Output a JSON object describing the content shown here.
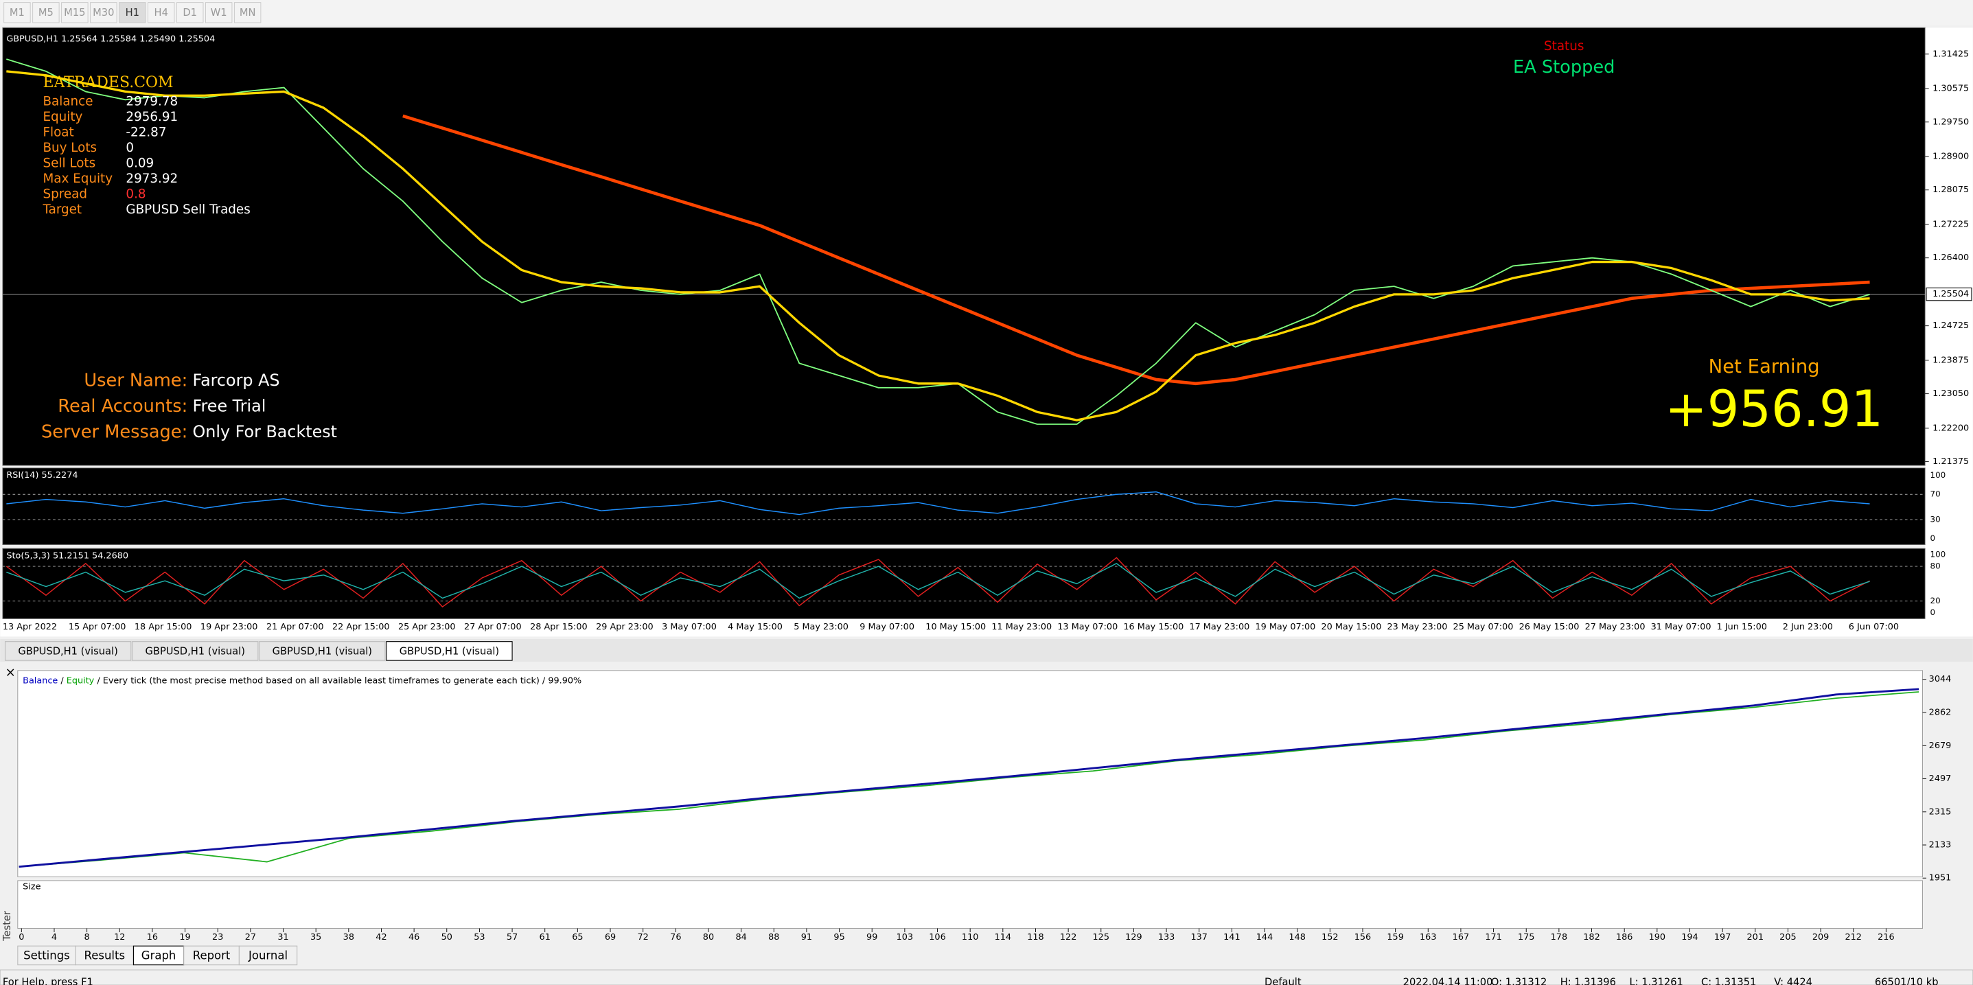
{
  "toolbar": {
    "timeframes": [
      "M1",
      "M5",
      "M15",
      "M30",
      "H1",
      "H4",
      "D1",
      "W1",
      "MN"
    ]
  },
  "chart": {
    "header": "GBPUSD,H1  1.25564 1.25584 1.25490 1.25504",
    "brand": "EATRADES.COM",
    "stats": [
      {
        "label": "Balance",
        "value": "2979.78"
      },
      {
        "label": "Equity",
        "value": "2956.91"
      },
      {
        "label": "Float",
        "value": "-22.87"
      },
      {
        "label": "Buy Lots",
        "value": "0"
      },
      {
        "label": "Sell Lots",
        "value": "0.09"
      },
      {
        "label": "Max Equity",
        "value": "2973.92"
      },
      {
        "label": "Spread",
        "value": "0.8"
      },
      {
        "label": "Target",
        "value": "GBPUSD Sell Trades"
      }
    ],
    "account": [
      {
        "label": "User Name:",
        "value": "Farcorp AS"
      },
      {
        "label": "Real Accounts:",
        "value": "Free Trial"
      },
      {
        "label": "Server Message:",
        "value": "Only For Backtest"
      }
    ],
    "status_label": "Status",
    "status": "EA Stopped",
    "net_label": "Net Earning",
    "net_value": "+956.91",
    "price_ticks": [
      "1.31425",
      "1.30575",
      "1.29750",
      "1.28900",
      "1.28075",
      "1.27225",
      "1.26400",
      "1.24725",
      "1.23875",
      "1.23050",
      "1.22200",
      "1.21375"
    ],
    "current_price": "1.25504",
    "time_labels": [
      "13 Apr 2022",
      "15 Apr 07:00",
      "18 Apr 15:00",
      "19 Apr 23:00",
      "21 Apr 07:00",
      "22 Apr 15:00",
      "25 Apr 23:00",
      "27 Apr 07:00",
      "28 Apr 15:00",
      "29 Apr 23:00",
      "3 May 07:00",
      "4 May 15:00",
      "5 May 23:00",
      "9 May 07:00",
      "10 May 15:00",
      "11 May 23:00",
      "13 May 07:00",
      "16 May 15:00",
      "17 May 23:00",
      "19 May 07:00",
      "20 May 15:00",
      "23 May 23:00",
      "25 May 07:00",
      "26 May 15:00",
      "27 May 23:00",
      "31 May 07:00",
      "1 Jun 15:00",
      "2 Jun 23:00",
      "6 Jun 07:00"
    ],
    "price": [
      1.313,
      1.31,
      1.305,
      1.303,
      1.304,
      1.3035,
      1.305,
      1.306,
      1.296,
      1.286,
      1.278,
      1.268,
      1.259,
      1.253,
      1.256,
      1.258,
      1.256,
      1.255,
      1.256,
      1.26,
      1.238,
      1.235,
      1.232,
      1.232,
      1.233,
      1.226,
      1.223,
      1.223,
      1.23,
      1.238,
      1.248,
      1.242,
      1.246,
      1.25,
      1.256,
      1.257,
      1.254,
      1.257,
      1.262,
      1.263,
      1.264,
      1.263,
      1.26,
      1.256,
      1.252,
      1.256,
      1.252,
      1.255
    ],
    "ma_fast": [
      1.31,
      1.309,
      1.307,
      1.305,
      1.304,
      1.304,
      1.3045,
      1.305,
      1.301,
      1.294,
      1.286,
      1.277,
      1.268,
      1.261,
      1.258,
      1.257,
      1.2565,
      1.2555,
      1.2555,
      1.257,
      1.248,
      1.24,
      1.235,
      1.233,
      1.233,
      1.23,
      1.226,
      1.224,
      1.226,
      1.231,
      1.24,
      1.243,
      1.245,
      1.248,
      1.252,
      1.255,
      1.255,
      1.256,
      1.259,
      1.261,
      1.263,
      1.263,
      1.2615,
      1.2585,
      1.255,
      1.255,
      1.2535,
      1.254
    ],
    "ma_slow": [
      null,
      null,
      null,
      null,
      null,
      null,
      null,
      null,
      null,
      null,
      1.299,
      1.296,
      1.293,
      1.29,
      1.287,
      1.284,
      1.281,
      1.278,
      1.275,
      1.272,
      1.268,
      1.264,
      1.26,
      1.256,
      1.252,
      1.248,
      1.244,
      1.24,
      1.237,
      1.234,
      1.233,
      1.234,
      1.236,
      1.238,
      1.24,
      1.242,
      1.244,
      1.246,
      1.248,
      1.25,
      1.252,
      1.254,
      1.255,
      1.256,
      1.2565,
      1.257,
      1.2575,
      1.258
    ]
  },
  "rsi": {
    "label": "RSI(14) 55.2274",
    "levels": [
      100,
      70,
      30,
      0
    ],
    "values": [
      55,
      62,
      58,
      50,
      60,
      48,
      57,
      63,
      52,
      45,
      40,
      47,
      55,
      50,
      58,
      44,
      49,
      53,
      60,
      46,
      38,
      48,
      52,
      57,
      45,
      40,
      50,
      62,
      70,
      74,
      55,
      50,
      60,
      57,
      52,
      63,
      58,
      55,
      49,
      60,
      52,
      56,
      47,
      44,
      62,
      50,
      60,
      55
    ]
  },
  "stoch": {
    "label": "Sto(5,3,3) 51.2151 54.2680",
    "levels": [
      100,
      80,
      20,
      0
    ],
    "main": [
      80,
      30,
      85,
      20,
      70,
      15,
      90,
      40,
      75,
      25,
      85,
      10,
      60,
      90,
      30,
      80,
      20,
      70,
      35,
      88,
      12,
      65,
      92,
      28,
      78,
      18,
      84,
      40,
      95,
      22,
      70,
      15,
      88,
      35,
      80,
      20,
      75,
      45,
      90,
      25,
      70,
      30,
      85,
      15,
      60,
      80,
      20,
      55
    ],
    "signal": [
      70,
      45,
      70,
      35,
      55,
      30,
      75,
      55,
      65,
      40,
      70,
      25,
      50,
      80,
      45,
      70,
      30,
      60,
      45,
      75,
      25,
      55,
      80,
      40,
      70,
      30,
      72,
      50,
      85,
      35,
      60,
      28,
      75,
      45,
      70,
      32,
      65,
      50,
      80,
      35,
      62,
      40,
      75,
      28,
      52,
      72,
      32,
      54
    ]
  },
  "chart_tabs": [
    "GBPUSD,H1 (visual)",
    "GBPUSD,H1 (visual)",
    "GBPUSD,H1 (visual)",
    "GBPUSD,H1 (visual)"
  ],
  "tester": {
    "balance_label": "Balance",
    "separator": "/",
    "equity_label": "Equity",
    "description": "/ Every tick (the most precise method based on all available least timeframes to generate each tick) / 99.90%",
    "axis_ticks": [
      3044,
      2862,
      2679,
      2497,
      2315,
      2133,
      1951
    ],
    "balance": [
      2013,
      2055,
      2095,
      2135,
      2175,
      2220,
      2265,
      2305,
      2345,
      2390,
      2430,
      2470,
      2510,
      2555,
      2600,
      2640,
      2680,
      2720,
      2765,
      2810,
      2855,
      2900,
      2960,
      2990
    ],
    "equity": [
      2013,
      2050,
      2090,
      2040,
      2170,
      2210,
      2260,
      2300,
      2330,
      2385,
      2425,
      2460,
      2505,
      2540,
      2595,
      2630,
      2675,
      2710,
      2760,
      2800,
      2850,
      2890,
      2940,
      2975
    ],
    "size_label": "Size",
    "size_ticks": [
      0,
      4,
      8,
      12,
      16,
      19,
      23,
      27,
      31,
      35,
      38,
      42,
      46,
      50,
      53,
      57,
      61,
      65,
      69,
      72,
      76,
      80,
      84,
      88,
      91,
      95,
      99,
      103,
      106,
      110,
      114,
      118,
      122,
      125,
      129,
      133,
      137,
      141,
      144,
      148,
      152,
      156,
      159,
      163,
      167,
      171,
      175,
      178,
      182,
      186,
      190,
      194,
      197,
      201,
      205,
      209,
      212,
      216
    ],
    "side_label": "Tester",
    "close": "×",
    "tabs": [
      "Settings",
      "Results",
      "Graph",
      "Report",
      "Journal"
    ]
  },
  "status_bar": [
    "For Help, press F1",
    "Default",
    "2022.04.14 11:00",
    "O: 1.31312",
    "H: 1.31396",
    "L: 1.31261",
    "C: 1.31351",
    "V: 4424",
    "66501/10 kb"
  ]
}
